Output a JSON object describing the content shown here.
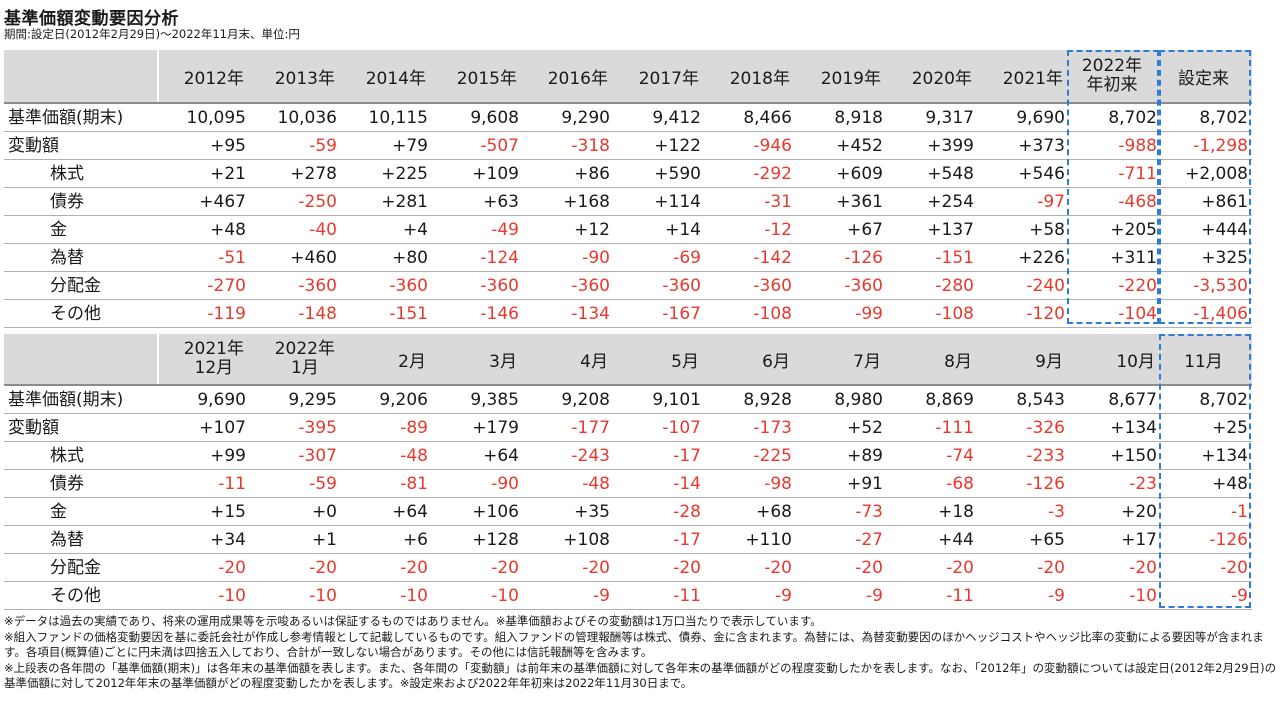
{
  "title": "基準価額変動要因分析",
  "subtitle": "期間:設定日(2012年2月29日)～2022年11月末、単位:円",
  "colors": {
    "negative": "#e8392f",
    "highlight_border": "#2f7bd8",
    "header_bg": "#dadada"
  },
  "table1": {
    "headers": [
      "2012年",
      "2013年",
      "2014年",
      "2015年",
      "2016年",
      "2017年",
      "2018年",
      "2019年",
      "2020年",
      "2021年",
      "2022年\n年初来",
      "設定来"
    ],
    "rows": [
      {
        "label": "基準価額(期末)",
        "indent": false,
        "values": [
          "10,095",
          "10,036",
          "10,115",
          "9,608",
          "9,290",
          "9,412",
          "8,466",
          "8,918",
          "9,317",
          "9,690",
          "8,702",
          "8,702"
        ]
      },
      {
        "label": "変動額",
        "indent": false,
        "values": [
          "+95",
          "-59",
          "+79",
          "-507",
          "-318",
          "+122",
          "-946",
          "+452",
          "+399",
          "+373",
          "-988",
          "-1,298"
        ]
      },
      {
        "label": "株式",
        "indent": true,
        "values": [
          "+21",
          "+278",
          "+225",
          "+109",
          "+86",
          "+590",
          "-292",
          "+609",
          "+548",
          "+546",
          "-711",
          "+2,008"
        ]
      },
      {
        "label": "債券",
        "indent": true,
        "values": [
          "+467",
          "-250",
          "+281",
          "+63",
          "+168",
          "+114",
          "-31",
          "+361",
          "+254",
          "-97",
          "-468",
          "+861"
        ]
      },
      {
        "label": "金",
        "indent": true,
        "values": [
          "+48",
          "-40",
          "+4",
          "-49",
          "+12",
          "+14",
          "-12",
          "+67",
          "+137",
          "+58",
          "+205",
          "+444"
        ]
      },
      {
        "label": "為替",
        "indent": true,
        "values": [
          "-51",
          "+460",
          "+80",
          "-124",
          "-90",
          "-69",
          "-142",
          "-126",
          "-151",
          "+226",
          "+311",
          "+325"
        ]
      },
      {
        "label": "分配金",
        "indent": true,
        "values": [
          "-270",
          "-360",
          "-360",
          "-360",
          "-360",
          "-360",
          "-360",
          "-360",
          "-280",
          "-240",
          "-220",
          "-3,530"
        ]
      },
      {
        "label": "その他",
        "indent": true,
        "values": [
          "-119",
          "-148",
          "-151",
          "-146",
          "-134",
          "-167",
          "-108",
          "-99",
          "-108",
          "-120",
          "-104",
          "-1,406"
        ]
      }
    ]
  },
  "table2": {
    "headers": [
      "2021年\n12月",
      "2022年\n1月",
      "2月",
      "3月",
      "4月",
      "5月",
      "6月",
      "7月",
      "8月",
      "9月",
      "10月",
      "11月"
    ],
    "rows": [
      {
        "label": "基準価額(期末)",
        "indent": false,
        "values": [
          "9,690",
          "9,295",
          "9,206",
          "9,385",
          "9,208",
          "9,101",
          "8,928",
          "8,980",
          "8,869",
          "8,543",
          "8,677",
          "8,702"
        ]
      },
      {
        "label": "変動額",
        "indent": false,
        "values": [
          "+107",
          "-395",
          "-89",
          "+179",
          "-177",
          "-107",
          "-173",
          "+52",
          "-111",
          "-326",
          "+134",
          "+25"
        ]
      },
      {
        "label": "株式",
        "indent": true,
        "values": [
          "+99",
          "-307",
          "-48",
          "+64",
          "-243",
          "-17",
          "-225",
          "+89",
          "-74",
          "-233",
          "+150",
          "+134"
        ]
      },
      {
        "label": "債券",
        "indent": true,
        "values": [
          "-11",
          "-59",
          "-81",
          "-90",
          "-48",
          "-14",
          "-98",
          "+91",
          "-68",
          "-126",
          "-23",
          "+48"
        ]
      },
      {
        "label": "金",
        "indent": true,
        "values": [
          "+15",
          "+0",
          "+64",
          "+106",
          "+35",
          "-28",
          "+68",
          "-73",
          "+18",
          "-3",
          "+20",
          "-1"
        ]
      },
      {
        "label": "為替",
        "indent": true,
        "values": [
          "+34",
          "+1",
          "+6",
          "+128",
          "+108",
          "-17",
          "+110",
          "-27",
          "+44",
          "+65",
          "+17",
          "-126"
        ]
      },
      {
        "label": "分配金",
        "indent": true,
        "values": [
          "-20",
          "-20",
          "-20",
          "-20",
          "-20",
          "-20",
          "-20",
          "-20",
          "-20",
          "-20",
          "-20",
          "-20"
        ]
      },
      {
        "label": "その他",
        "indent": true,
        "values": [
          "-10",
          "-10",
          "-10",
          "-10",
          "-9",
          "-11",
          "-9",
          "-9",
          "-11",
          "-9",
          "-10",
          "-9"
        ]
      }
    ]
  },
  "notes": [
    "※データは過去の実績であり、将来の運用成果等を示唆あるいは保証するものではありません。※基準価額およびその変動額は1万口当たりで表示しています。",
    "※組入ファンドの価格変動要因を基に委託会社が作成し参考情報として記載しているものです。組入ファンドの管理報酬等は株式、債券、金に含まれます。為替には、為替変動要因のほかヘッジコストやヘッジ比率の変動による要因等が含まれます。各項目(概算値)ごとに円未満は四捨五入しており、合計が一致しない場合があります。その他には信託報酬等を含みます。",
    "※上段表の各年間の「基準価額(期末)」は各年末の基準価額を表します。また、各年間の「変動額」は前年末の基準価額に対して各年末の基準価額がどの程度変動したかを表します。なお、「2012年」の変動額については設定日(2012年2月29日)の基準価額に対して2012年年末の基準価額がどの程度変動したかを表します。※設定来および2022年年初来は2022年11月30日まで。"
  ]
}
